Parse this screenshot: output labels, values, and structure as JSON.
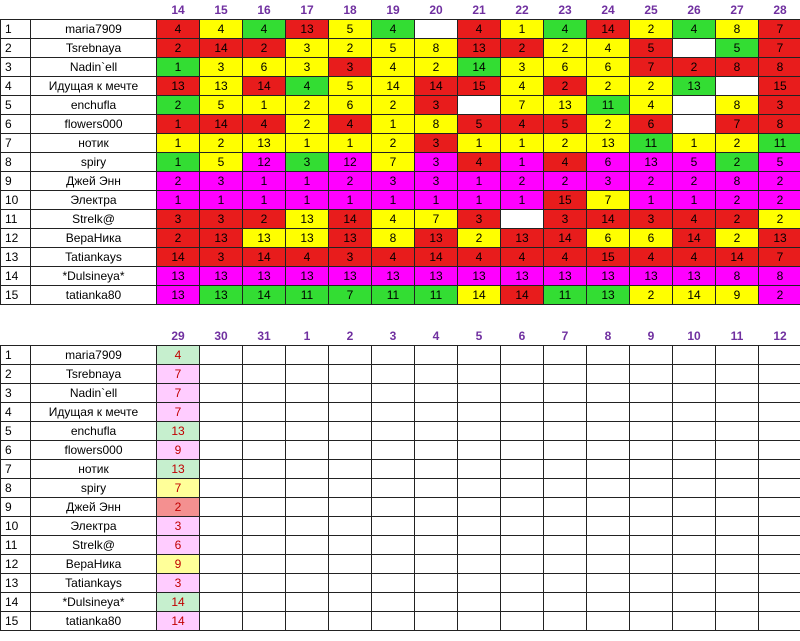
{
  "palette": {
    "r": "#e81c1c",
    "y": "#ffff00",
    "g": "#33dd33",
    "m": "#ff00ff",
    "w": "#ffffff"
  },
  "table1": {
    "days": [
      "14",
      "15",
      "16",
      "17",
      "18",
      "19",
      "20",
      "21",
      "22",
      "23",
      "24",
      "25",
      "26",
      "27",
      "28"
    ],
    "rows": [
      {
        "n": "1",
        "name": "maria7909",
        "cells": [
          [
            "4",
            "r"
          ],
          [
            "4",
            "y"
          ],
          [
            "4",
            "g"
          ],
          [
            "13",
            "r"
          ],
          [
            "5",
            "y"
          ],
          [
            "4",
            "g"
          ],
          [
            "",
            "w"
          ],
          [
            "4",
            "r"
          ],
          [
            "1",
            "y"
          ],
          [
            "4",
            "g"
          ],
          [
            "14",
            "r"
          ],
          [
            "2",
            "y"
          ],
          [
            "4",
            "g"
          ],
          [
            "8",
            "y"
          ],
          [
            "7",
            "r"
          ]
        ]
      },
      {
        "n": "2",
        "name": "Tsrebnaya",
        "cells": [
          [
            "2",
            "r"
          ],
          [
            "14",
            "r"
          ],
          [
            "2",
            "r"
          ],
          [
            "3",
            "y"
          ],
          [
            "2",
            "y"
          ],
          [
            "5",
            "y"
          ],
          [
            "8",
            "y"
          ],
          [
            "13",
            "r"
          ],
          [
            "2",
            "r"
          ],
          [
            "2",
            "y"
          ],
          [
            "4",
            "y"
          ],
          [
            "5",
            "r"
          ],
          [
            "",
            "w"
          ],
          [
            "5",
            "g"
          ],
          [
            "7",
            "r"
          ]
        ]
      },
      {
        "n": "3",
        "name": "Nadin`ell",
        "cells": [
          [
            "1",
            "g"
          ],
          [
            "3",
            "y"
          ],
          [
            "6",
            "y"
          ],
          [
            "3",
            "y"
          ],
          [
            "3",
            "r"
          ],
          [
            "4",
            "y"
          ],
          [
            "2",
            "y"
          ],
          [
            "14",
            "g"
          ],
          [
            "3",
            "y"
          ],
          [
            "6",
            "y"
          ],
          [
            "6",
            "y"
          ],
          [
            "7",
            "r"
          ],
          [
            "2",
            "r"
          ],
          [
            "8",
            "r"
          ],
          [
            "8",
            "r"
          ]
        ]
      },
      {
        "n": "4",
        "name": "Идущая к мечте",
        "cells": [
          [
            "13",
            "r"
          ],
          [
            "13",
            "y"
          ],
          [
            "14",
            "r"
          ],
          [
            "4",
            "g"
          ],
          [
            "5",
            "y"
          ],
          [
            "14",
            "y"
          ],
          [
            "14",
            "r"
          ],
          [
            "15",
            "r"
          ],
          [
            "4",
            "y"
          ],
          [
            "2",
            "r"
          ],
          [
            "2",
            "y"
          ],
          [
            "2",
            "y"
          ],
          [
            "13",
            "g"
          ],
          [
            "",
            "w"
          ],
          [
            "15",
            "r"
          ]
        ]
      },
      {
        "n": "5",
        "name": "enchufla",
        "cells": [
          [
            "2",
            "g"
          ],
          [
            "5",
            "y"
          ],
          [
            "1",
            "y"
          ],
          [
            "2",
            "y"
          ],
          [
            "6",
            "y"
          ],
          [
            "2",
            "y"
          ],
          [
            "3",
            "r"
          ],
          [
            "",
            "w"
          ],
          [
            "7",
            "y"
          ],
          [
            "13",
            "y"
          ],
          [
            "11",
            "g"
          ],
          [
            "4",
            "y"
          ],
          [
            "",
            "w"
          ],
          [
            "8",
            "y"
          ],
          [
            "3",
            "r"
          ]
        ]
      },
      {
        "n": "6",
        "name": "flowers000",
        "cells": [
          [
            "1",
            "r"
          ],
          [
            "14",
            "r"
          ],
          [
            "4",
            "r"
          ],
          [
            "2",
            "y"
          ],
          [
            "4",
            "r"
          ],
          [
            "1",
            "y"
          ],
          [
            "8",
            "y"
          ],
          [
            "5",
            "r"
          ],
          [
            "4",
            "r"
          ],
          [
            "5",
            "r"
          ],
          [
            "2",
            "y"
          ],
          [
            "6",
            "r"
          ],
          [
            "",
            "w"
          ],
          [
            "7",
            "r"
          ],
          [
            "8",
            "r"
          ]
        ]
      },
      {
        "n": "7",
        "name": "нотик",
        "cells": [
          [
            "1",
            "y"
          ],
          [
            "2",
            "y"
          ],
          [
            "13",
            "y"
          ],
          [
            "1",
            "y"
          ],
          [
            "1",
            "y"
          ],
          [
            "2",
            "y"
          ],
          [
            "3",
            "r"
          ],
          [
            "1",
            "y"
          ],
          [
            "1",
            "y"
          ],
          [
            "2",
            "y"
          ],
          [
            "13",
            "y"
          ],
          [
            "11",
            "g"
          ],
          [
            "1",
            "y"
          ],
          [
            "2",
            "y"
          ],
          [
            "11",
            "g"
          ]
        ]
      },
      {
        "n": "8",
        "name": "spiry",
        "cells": [
          [
            "1",
            "g"
          ],
          [
            "5",
            "y"
          ],
          [
            "12",
            "m"
          ],
          [
            "3",
            "g"
          ],
          [
            "12",
            "m"
          ],
          [
            "7",
            "y"
          ],
          [
            "3",
            "m"
          ],
          [
            "4",
            "r"
          ],
          [
            "1",
            "m"
          ],
          [
            "4",
            "r"
          ],
          [
            "6",
            "m"
          ],
          [
            "13",
            "m"
          ],
          [
            "5",
            "m"
          ],
          [
            "2",
            "g"
          ],
          [
            "5",
            "m"
          ]
        ]
      },
      {
        "n": "9",
        "name": "Джей Энн",
        "cells": [
          [
            "2",
            "m"
          ],
          [
            "3",
            "m"
          ],
          [
            "1",
            "m"
          ],
          [
            "1",
            "m"
          ],
          [
            "2",
            "m"
          ],
          [
            "3",
            "m"
          ],
          [
            "3",
            "m"
          ],
          [
            "1",
            "m"
          ],
          [
            "2",
            "m"
          ],
          [
            "2",
            "m"
          ],
          [
            "3",
            "m"
          ],
          [
            "2",
            "m"
          ],
          [
            "2",
            "m"
          ],
          [
            "8",
            "m"
          ],
          [
            "2",
            "m"
          ]
        ]
      },
      {
        "n": "10",
        "name": "Электра",
        "cells": [
          [
            "1",
            "m"
          ],
          [
            "1",
            "m"
          ],
          [
            "1",
            "m"
          ],
          [
            "1",
            "m"
          ],
          [
            "1",
            "m"
          ],
          [
            "1",
            "m"
          ],
          [
            "1",
            "m"
          ],
          [
            "1",
            "m"
          ],
          [
            "1",
            "m"
          ],
          [
            "15",
            "r"
          ],
          [
            "7",
            "y"
          ],
          [
            "1",
            "m"
          ],
          [
            "1",
            "m"
          ],
          [
            "2",
            "m"
          ],
          [
            "2",
            "m"
          ]
        ]
      },
      {
        "n": "11",
        "name": "Strelk@",
        "cells": [
          [
            "3",
            "r"
          ],
          [
            "3",
            "r"
          ],
          [
            "2",
            "r"
          ],
          [
            "13",
            "y"
          ],
          [
            "14",
            "r"
          ],
          [
            "4",
            "y"
          ],
          [
            "7",
            "y"
          ],
          [
            "3",
            "r"
          ],
          [
            "",
            "w"
          ],
          [
            "3",
            "r"
          ],
          [
            "14",
            "r"
          ],
          [
            "3",
            "r"
          ],
          [
            "4",
            "r"
          ],
          [
            "2",
            "r"
          ],
          [
            "2",
            "y"
          ]
        ]
      },
      {
        "n": "12",
        "name": "ВераНика",
        "cells": [
          [
            "2",
            "r"
          ],
          [
            "13",
            "r"
          ],
          [
            "13",
            "y"
          ],
          [
            "13",
            "y"
          ],
          [
            "13",
            "r"
          ],
          [
            "8",
            "y"
          ],
          [
            "13",
            "r"
          ],
          [
            "2",
            "y"
          ],
          [
            "13",
            "r"
          ],
          [
            "14",
            "r"
          ],
          [
            "6",
            "y"
          ],
          [
            "6",
            "y"
          ],
          [
            "14",
            "r"
          ],
          [
            "2",
            "y"
          ],
          [
            "13",
            "r"
          ]
        ]
      },
      {
        "n": "13",
        "name": "Tatiankays",
        "cells": [
          [
            "14",
            "r"
          ],
          [
            "3",
            "r"
          ],
          [
            "14",
            "r"
          ],
          [
            "4",
            "r"
          ],
          [
            "3",
            "r"
          ],
          [
            "4",
            "r"
          ],
          [
            "14",
            "r"
          ],
          [
            "4",
            "r"
          ],
          [
            "4",
            "r"
          ],
          [
            "4",
            "r"
          ],
          [
            "15",
            "r"
          ],
          [
            "4",
            "r"
          ],
          [
            "4",
            "r"
          ],
          [
            "14",
            "r"
          ],
          [
            "7",
            "r"
          ]
        ]
      },
      {
        "n": "14",
        "name": "*Dulsineya*",
        "cells": [
          [
            "13",
            "m"
          ],
          [
            "13",
            "m"
          ],
          [
            "13",
            "m"
          ],
          [
            "13",
            "m"
          ],
          [
            "13",
            "m"
          ],
          [
            "13",
            "m"
          ],
          [
            "13",
            "m"
          ],
          [
            "13",
            "m"
          ],
          [
            "13",
            "m"
          ],
          [
            "13",
            "m"
          ],
          [
            "13",
            "m"
          ],
          [
            "13",
            "m"
          ],
          [
            "13",
            "m"
          ],
          [
            "8",
            "m"
          ],
          [
            "8",
            "m"
          ]
        ]
      },
      {
        "n": "15",
        "name": "tatianka80",
        "cells": [
          [
            "13",
            "m"
          ],
          [
            "13",
            "g"
          ],
          [
            "14",
            "g"
          ],
          [
            "11",
            "g"
          ],
          [
            "7",
            "g"
          ],
          [
            "11",
            "g"
          ],
          [
            "11",
            "g"
          ],
          [
            "14",
            "y"
          ],
          [
            "14",
            "r"
          ],
          [
            "11",
            "g"
          ],
          [
            "13",
            "g"
          ],
          [
            "2",
            "y"
          ],
          [
            "14",
            "y"
          ],
          [
            "9",
            "y"
          ],
          [
            "2",
            "m"
          ]
        ]
      }
    ]
  },
  "table2": {
    "days": [
      "29",
      "30",
      "31",
      "1",
      "2",
      "3",
      "4",
      "5",
      "6",
      "7",
      "8",
      "9",
      "10",
      "11",
      "12"
    ],
    "rows": [
      {
        "n": "1",
        "name": "maria7909",
        "v": "4",
        "c": "lg"
      },
      {
        "n": "2",
        "name": "Tsrebnaya",
        "v": "7",
        "c": "lm"
      },
      {
        "n": "3",
        "name": "Nadin`ell",
        "v": "7",
        "c": "lm"
      },
      {
        "n": "4",
        "name": "Идущая к мечте",
        "v": "7",
        "c": "lm"
      },
      {
        "n": "5",
        "name": "enchufla",
        "v": "13",
        "c": "lg"
      },
      {
        "n": "6",
        "name": "flowers000",
        "v": "9",
        "c": "lm"
      },
      {
        "n": "7",
        "name": "нотик",
        "v": "13",
        "c": "lg"
      },
      {
        "n": "8",
        "name": "spiry",
        "v": "7",
        "c": "ly"
      },
      {
        "n": "9",
        "name": "Джей Энн",
        "v": "2",
        "c": "lr"
      },
      {
        "n": "10",
        "name": "Электра",
        "v": "3",
        "c": "lm"
      },
      {
        "n": "11",
        "name": "Strelk@",
        "v": "6",
        "c": "lm"
      },
      {
        "n": "12",
        "name": "ВераНика",
        "v": "9",
        "c": "ly"
      },
      {
        "n": "13",
        "name": "Tatiankays",
        "v": "3",
        "c": "lm"
      },
      {
        "n": "14",
        "name": "*Dulsineya*",
        "v": "14",
        "c": "lg"
      },
      {
        "n": "15",
        "name": "tatianka80",
        "v": "14",
        "c": "lm"
      }
    ]
  }
}
